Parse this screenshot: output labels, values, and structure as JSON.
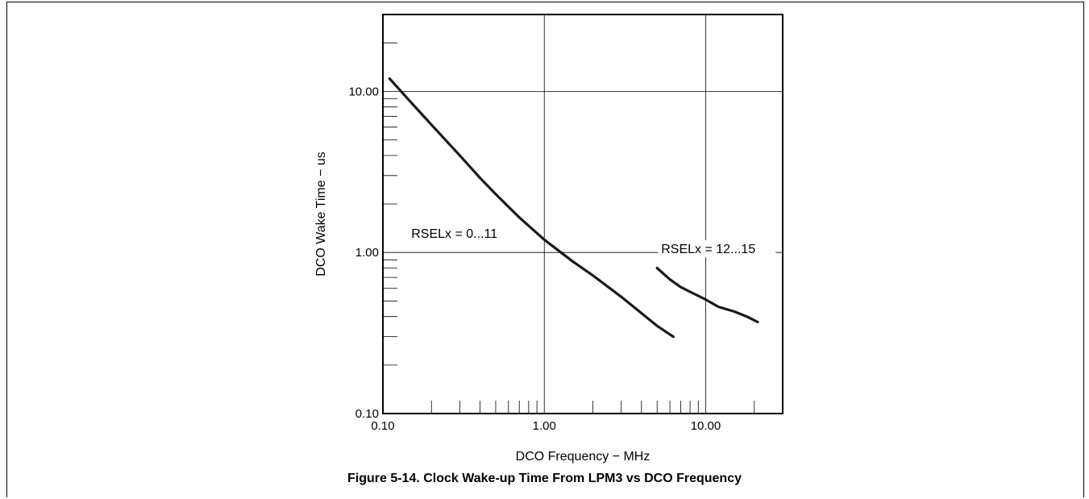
{
  "figure_caption": "Figure 5-14. Clock Wake-up Time From LPM3 vs DCO Frequency",
  "colors": {
    "line": "#1a1a1a",
    "axis": "#000000",
    "grid": "#000000",
    "background": "#ffffff"
  },
  "chart_data": {
    "type": "line",
    "xlabel": "DCO Frequency − MHz",
    "ylabel": "DCO Wake Time − us",
    "xscale": "log",
    "yscale": "log",
    "xlim": [
      0.1,
      30
    ],
    "ylim": [
      0.1,
      30
    ],
    "xticks": [
      {
        "value": 0.1,
        "label": "0.10"
      },
      {
        "value": 1,
        "label": "1.00"
      },
      {
        "value": 10,
        "label": "10.00"
      }
    ],
    "yticks": [
      {
        "value": 0.1,
        "label": "0.10"
      },
      {
        "value": 1,
        "label": "1.00"
      },
      {
        "value": 10,
        "label": "10.00"
      }
    ],
    "grid": true,
    "legend": "none",
    "annotations": [
      {
        "text": "RSELx = 0...11",
        "x": 0.15,
        "y": 1.25
      },
      {
        "text": "RSELx = 12...15",
        "x": 5.3,
        "y": 1.0
      }
    ],
    "series": [
      {
        "x": [
          0.11,
          0.15,
          0.2,
          0.3,
          0.4,
          0.5,
          0.7,
          1.0,
          1.5,
          2.0,
          3.0,
          4.0,
          5.0,
          6.3
        ],
        "y": [
          12.0,
          8.5,
          6.2,
          4.0,
          2.9,
          2.3,
          1.65,
          1.2,
          0.88,
          0.72,
          0.53,
          0.42,
          0.35,
          0.3
        ]
      },
      {
        "x": [
          5.0,
          6.0,
          7.0,
          8.0,
          10.0,
          12.0,
          15.0,
          18.0,
          21.0
        ],
        "y": [
          0.8,
          0.68,
          0.61,
          0.57,
          0.51,
          0.46,
          0.43,
          0.4,
          0.37
        ]
      }
    ]
  }
}
